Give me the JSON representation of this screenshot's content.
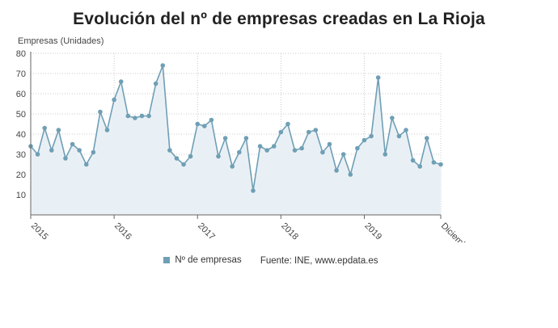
{
  "title": "Evolución del nº de empresas creadas en La Rioja",
  "legend": {
    "series_label": "Nº de empresas",
    "source": "Fuente: INE, www.epdata.es"
  },
  "colors": {
    "line": "#6f9fb5",
    "marker": "#6f9fb5",
    "area": "#e9f0f5",
    "grid": "#bbbbbb"
  },
  "chart_data": {
    "type": "area",
    "ylabel": "Empresas (Unidades)",
    "xlabel": "",
    "ylim": [
      0,
      80
    ],
    "yticks": [
      10,
      20,
      30,
      40,
      50,
      60,
      70,
      80
    ],
    "x_tick_labels": [
      "2015",
      "2016",
      "2017",
      "2018",
      "2019",
      "Diciembre"
    ],
    "grid": true,
    "legend_position": "bottom",
    "series": [
      {
        "name": "Nº de empresas",
        "values": [
          34,
          30,
          43,
          32,
          42,
          28,
          35,
          32,
          25,
          31,
          51,
          42,
          57,
          66,
          49,
          48,
          49,
          49,
          65,
          74,
          32,
          28,
          25,
          29,
          45,
          44,
          47,
          29,
          38,
          24,
          31,
          38,
          12,
          34,
          32,
          34,
          41,
          45,
          32,
          33,
          41,
          42,
          31,
          35,
          22,
          30,
          20,
          33,
          37,
          39,
          68,
          30,
          48,
          39,
          42,
          27,
          24,
          38,
          26,
          25
        ]
      }
    ]
  }
}
